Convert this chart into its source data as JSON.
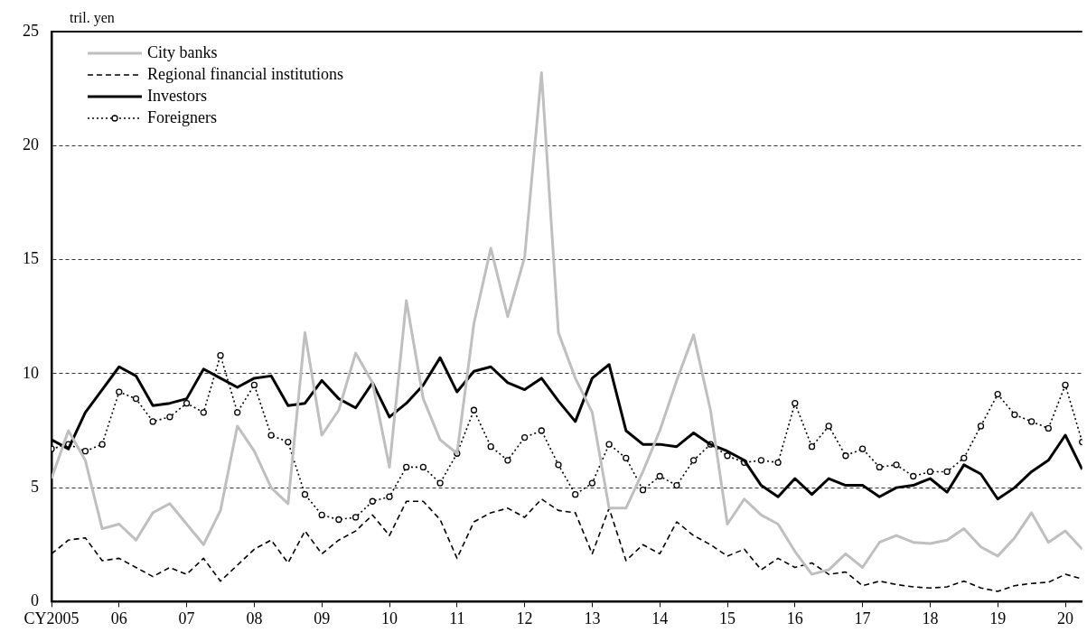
{
  "chart_data": {
    "type": "line",
    "ylabel": "tril. yen",
    "x": [
      2005,
      2005.25,
      2005.5,
      2005.75,
      2006,
      2006.25,
      2006.5,
      2006.75,
      2007,
      2007.25,
      2007.5,
      2007.75,
      2008,
      2008.25,
      2008.5,
      2008.75,
      2009,
      2009.25,
      2009.5,
      2009.75,
      2010,
      2010.25,
      2010.5,
      2010.75,
      2011,
      2011.25,
      2011.5,
      2011.75,
      2012,
      2012.25,
      2012.5,
      2012.75,
      2013,
      2013.25,
      2013.5,
      2013.75,
      2014,
      2014.25,
      2014.5,
      2014.75,
      2015,
      2015.25,
      2015.5,
      2015.75,
      2016,
      2016.25,
      2016.5,
      2016.75,
      2017,
      2017.25,
      2017.5,
      2017.75,
      2018,
      2018.25,
      2018.5,
      2018.75,
      2019,
      2019.25,
      2019.5,
      2019.75,
      2020,
      2020.25
    ],
    "series": [
      {
        "name": "City banks",
        "color": "#bfbfbf",
        "line_style": "solid",
        "marker": "none",
        "values": [
          5.4,
          7.5,
          6.2,
          3.2,
          3.4,
          2.7,
          3.9,
          4.3,
          3.4,
          2.5,
          4.0,
          7.7,
          6.6,
          5.0,
          4.3,
          11.8,
          7.3,
          8.4,
          10.9,
          9.6,
          5.9,
          13.2,
          8.9,
          7.1,
          6.5,
          12.2,
          15.5,
          12.5,
          15.1,
          23.2,
          11.8,
          9.8,
          8.3,
          4.1,
          4.1,
          5.7,
          7.5,
          9.7,
          11.7,
          8.4,
          3.4,
          4.5,
          3.8,
          3.4,
          2.2,
          1.2,
          1.4,
          2.1,
          1.5,
          2.6,
          2.9,
          2.6,
          2.55,
          2.7,
          3.2,
          2.4,
          2.0,
          2.8,
          3.9,
          2.6,
          3.1,
          2.3
        ]
      },
      {
        "name": "Regional financial institutions",
        "color": "#000000",
        "line_style": "dashed",
        "marker": "none",
        "values": [
          2.1,
          2.7,
          2.8,
          1.8,
          1.9,
          1.5,
          1.1,
          1.5,
          1.2,
          1.9,
          0.9,
          1.6,
          2.3,
          2.7,
          1.7,
          3.1,
          2.1,
          2.7,
          3.1,
          3.8,
          2.9,
          4.4,
          4.4,
          3.6,
          1.9,
          3.5,
          3.9,
          4.1,
          3.7,
          4.5,
          4.0,
          3.9,
          2.1,
          4.1,
          1.8,
          2.5,
          2.1,
          3.5,
          2.9,
          2.5,
          2.0,
          2.3,
          1.4,
          1.9,
          1.5,
          1.7,
          1.2,
          1.3,
          0.7,
          0.9,
          0.75,
          0.65,
          0.6,
          0.65,
          0.9,
          0.6,
          0.45,
          0.7,
          0.8,
          0.85,
          1.2,
          1.0
        ]
      },
      {
        "name": "Investors",
        "color": "#000000",
        "line_style": "solid",
        "marker": "none",
        "values": [
          7.1,
          6.7,
          8.3,
          9.3,
          10.3,
          9.9,
          8.6,
          8.7,
          8.9,
          10.2,
          9.8,
          9.4,
          9.8,
          9.9,
          8.6,
          8.7,
          9.7,
          8.9,
          8.5,
          9.6,
          8.1,
          8.7,
          9.5,
          10.7,
          9.2,
          10.1,
          10.3,
          9.6,
          9.3,
          9.8,
          8.8,
          7.9,
          9.8,
          10.4,
          7.5,
          6.9,
          6.9,
          6.8,
          7.4,
          6.9,
          6.6,
          6.2,
          5.1,
          4.6,
          5.4,
          4.7,
          5.4,
          5.1,
          5.1,
          4.6,
          5.0,
          5.1,
          5.4,
          4.8,
          6.0,
          5.6,
          4.5,
          5.0,
          5.7,
          6.2,
          7.3,
          5.8
        ]
      },
      {
        "name": "Foreigners",
        "color": "#000000",
        "line_style": "dotted",
        "marker": "circle",
        "values": [
          6.7,
          6.9,
          6.6,
          6.9,
          9.2,
          8.9,
          7.9,
          8.1,
          8.7,
          8.3,
          10.8,
          8.3,
          9.5,
          7.3,
          7.0,
          4.7,
          3.8,
          3.6,
          3.7,
          4.4,
          4.6,
          5.9,
          5.9,
          5.2,
          6.5,
          8.4,
          6.8,
          6.2,
          7.2,
          7.5,
          6.0,
          4.7,
          5.2,
          6.9,
          6.3,
          4.9,
          5.5,
          5.1,
          6.2,
          6.9,
          6.4,
          6.1,
          6.2,
          6.1,
          8.7,
          6.8,
          7.7,
          6.4,
          6.7,
          5.9,
          6.0,
          5.5,
          5.7,
          5.7,
          6.3,
          7.7,
          9.1,
          8.2,
          7.9,
          7.6,
          9.5,
          7.0
        ]
      }
    ],
    "xlim": [
      2005,
      2020.25
    ],
    "xticks": [
      {
        "value": 2005,
        "label": "CY2005"
      },
      {
        "value": 2006,
        "label": "06"
      },
      {
        "value": 2007,
        "label": "07"
      },
      {
        "value": 2008,
        "label": "08"
      },
      {
        "value": 2009,
        "label": "09"
      },
      {
        "value": 2010,
        "label": "10"
      },
      {
        "value": 2011,
        "label": "11"
      },
      {
        "value": 2012,
        "label": "12"
      },
      {
        "value": 2013,
        "label": "13"
      },
      {
        "value": 2014,
        "label": "14"
      },
      {
        "value": 2015,
        "label": "15"
      },
      {
        "value": 2016,
        "label": "16"
      },
      {
        "value": 2017,
        "label": "17"
      },
      {
        "value": 2018,
        "label": "18"
      },
      {
        "value": 2019,
        "label": "19"
      },
      {
        "value": 2020,
        "label": "20"
      }
    ],
    "ylim": [
      0,
      25
    ],
    "yticks": [
      0,
      5,
      10,
      15,
      20,
      25
    ],
    "grid": "y",
    "legend": "top left"
  }
}
